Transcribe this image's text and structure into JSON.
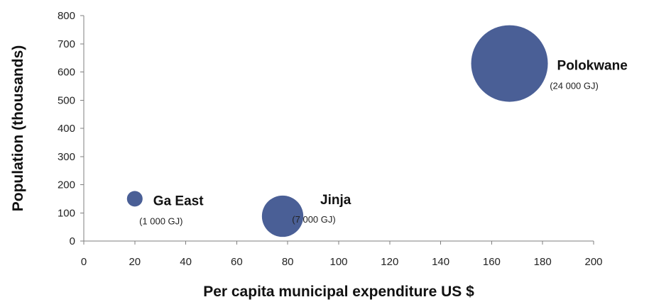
{
  "chart_data": {
    "type": "scatter",
    "title": "",
    "xlabel": "Per capita municipal expenditure US $",
    "ylabel": "Population (thousands)",
    "xlim": [
      0,
      200
    ],
    "ylim": [
      0,
      800
    ],
    "xticks": [
      0,
      20,
      40,
      60,
      80,
      100,
      120,
      140,
      160,
      180,
      200
    ],
    "yticks": [
      0,
      100,
      200,
      300,
      400,
      500,
      600,
      700,
      800
    ],
    "grid": false,
    "bubble_color": "#4a5f96",
    "points": [
      {
        "name": "Ga East",
        "label": "(1 000 GJ)",
        "x": 20,
        "y": 150,
        "size_gj": 1000
      },
      {
        "name": "Jinja",
        "label": "(7 000 GJ)",
        "x": 78,
        "y": 88,
        "size_gj": 7000
      },
      {
        "name": "Polokwane",
        "label": "(24 000 GJ)",
        "x": 167,
        "y": 630,
        "size_gj": 24000
      }
    ]
  }
}
